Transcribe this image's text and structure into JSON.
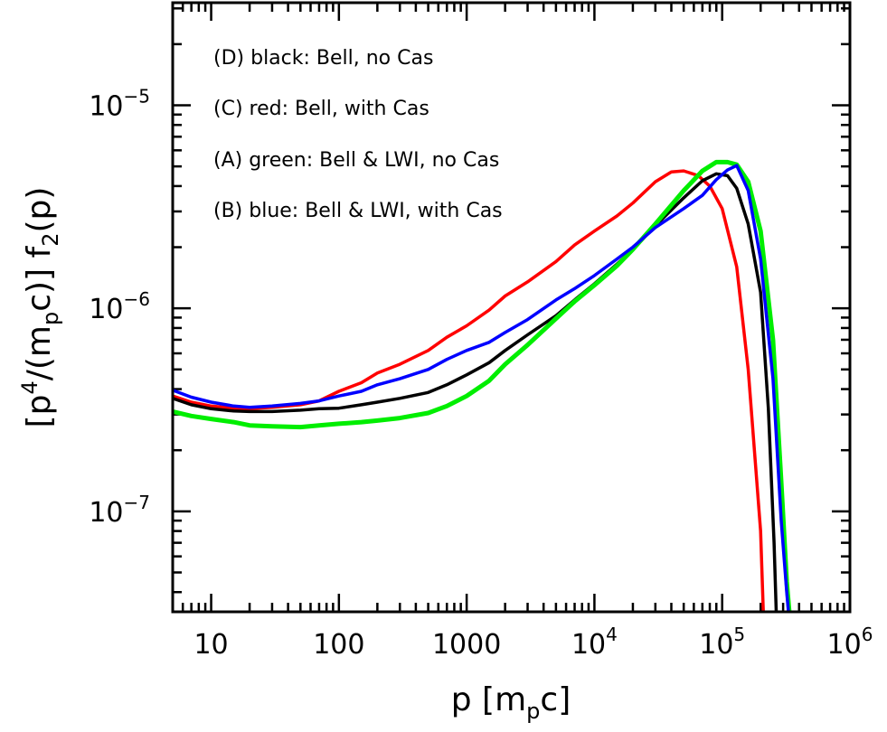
{
  "chart_data": {
    "type": "line",
    "scale": {
      "x": "log",
      "y": "log"
    },
    "xlim": [
      5,
      1000000
    ],
    "ylim": [
      3.2e-08,
      3.2e-05
    ],
    "xticks": [
      {
        "value": 10,
        "label": "10"
      },
      {
        "value": 100,
        "label": "100"
      },
      {
        "value": 1000,
        "label": "1000"
      },
      {
        "value": 10000,
        "base": "10",
        "exp": "4"
      },
      {
        "value": 100000,
        "base": "10",
        "exp": "5"
      },
      {
        "value": 1000000,
        "base": "10",
        "exp": "6"
      }
    ],
    "yticks": [
      {
        "value": 1e-07,
        "base": "10",
        "exp": "−7"
      },
      {
        "value": 1e-06,
        "base": "10",
        "exp": "−6"
      },
      {
        "value": 1e-05,
        "base": "10",
        "exp": "−5"
      }
    ],
    "xlabel": {
      "main": "p  [m",
      "sub": "p",
      "tail": "c]"
    },
    "ylabel": {
      "a": "[p",
      "sup": "4",
      "b": "/(m",
      "sub1": "p",
      "c": "c)]  f",
      "sub2": "2",
      "d": "(p)"
    },
    "legend_position": "top-left",
    "legend": [
      "(D) black: Bell, no Cas",
      "(C) red: Bell, with Cas",
      "(A) green: Bell & LWI, no Cas",
      "(B) blue: Bell & LWI, with Cas"
    ],
    "series": [
      {
        "color": "#ff0000",
        "x": [
          5,
          7,
          10,
          15,
          20,
          30,
          50,
          70,
          100,
          150,
          200,
          300,
          500,
          700,
          1000,
          1500,
          2000,
          3000,
          5000,
          7000,
          10000,
          15000,
          20000,
          30000,
          40000,
          50000,
          65000,
          80000,
          100000,
          130000,
          160000,
          200000,
          210000
        ],
        "y": [
          3.7e-07,
          3.45e-07,
          3.3e-07,
          3.22e-07,
          3.2e-07,
          3.25e-07,
          3.35e-07,
          3.5e-07,
          3.9e-07,
          4.3e-07,
          4.8e-07,
          5.3e-07,
          6.2e-07,
          7.2e-07,
          8.2e-07,
          9.8e-07,
          1.15e-06,
          1.35e-06,
          1.7e-06,
          2.05e-06,
          2.4e-06,
          2.85e-06,
          3.3e-06,
          4.2e-06,
          4.7e-06,
          4.75e-06,
          4.5e-06,
          4e-06,
          3.1e-06,
          1.6e-06,
          5e-07,
          8e-08,
          3.2e-08
        ]
      },
      {
        "color": "#000000",
        "x": [
          5,
          7,
          10,
          15,
          20,
          30,
          50,
          70,
          100,
          150,
          200,
          300,
          500,
          700,
          1000,
          1500,
          2000,
          3000,
          5000,
          7000,
          10000,
          15000,
          20000,
          30000,
          50000,
          70000,
          90000,
          110000,
          130000,
          160000,
          200000,
          230000,
          255000,
          265000
        ],
        "y": [
          3.6e-07,
          3.35e-07,
          3.2e-07,
          3.12e-07,
          3.1e-07,
          3.1e-07,
          3.15e-07,
          3.2e-07,
          3.22e-07,
          3.35e-07,
          3.45e-07,
          3.6e-07,
          3.85e-07,
          4.2e-07,
          4.7e-07,
          5.4e-07,
          6.2e-07,
          7.4e-07,
          9.2e-07,
          1.1e-06,
          1.32e-06,
          1.65e-06,
          1.95e-06,
          2.55e-06,
          3.5e-06,
          4.25e-06,
          4.6e-06,
          4.5e-06,
          3.9e-06,
          2.6e-06,
          1.2e-06,
          3.2e-07,
          7e-08,
          3.2e-08
        ]
      },
      {
        "color": "#00ee00",
        "x": [
          5,
          7,
          10,
          15,
          20,
          30,
          50,
          70,
          100,
          150,
          200,
          300,
          500,
          700,
          1000,
          1500,
          2000,
          3000,
          5000,
          7000,
          10000,
          15000,
          20000,
          30000,
          50000,
          70000,
          90000,
          110000,
          130000,
          160000,
          200000,
          250000,
          290000,
          320000,
          335000
        ],
        "y": [
          3.1e-07,
          2.95e-07,
          2.85e-07,
          2.75e-07,
          2.65e-07,
          2.62e-07,
          2.6e-07,
          2.65e-07,
          2.7e-07,
          2.75e-07,
          2.8e-07,
          2.88e-07,
          3.05e-07,
          3.3e-07,
          3.7e-07,
          4.4e-07,
          5.3e-07,
          6.6e-07,
          8.9e-07,
          1.08e-06,
          1.3e-06,
          1.62e-06,
          1.95e-06,
          2.6e-06,
          3.8e-06,
          4.75e-06,
          5.25e-06,
          5.25e-06,
          5.1e-06,
          4.2e-06,
          2.4e-06,
          7e-07,
          1.4e-07,
          4.5e-08,
          3.2e-08
        ]
      },
      {
        "color": "#0000ff",
        "x": [
          5,
          7,
          10,
          15,
          20,
          30,
          50,
          70,
          100,
          150,
          200,
          300,
          500,
          700,
          1000,
          1500,
          2000,
          3000,
          5000,
          7000,
          10000,
          15000,
          20000,
          30000,
          50000,
          70000,
          90000,
          110000,
          130000,
          160000,
          200000,
          250000,
          290000,
          320000,
          330000
        ],
        "y": [
          3.95e-07,
          3.65e-07,
          3.45e-07,
          3.3e-07,
          3.25e-07,
          3.3e-07,
          3.4e-07,
          3.5e-07,
          3.7e-07,
          3.9e-07,
          4.2e-07,
          4.5e-07,
          5e-07,
          5.6e-07,
          6.2e-07,
          6.8e-07,
          7.6e-07,
          8.8e-07,
          1.1e-06,
          1.25e-06,
          1.45e-06,
          1.75e-06,
          2e-06,
          2.5e-06,
          3.1e-06,
          3.6e-06,
          4.3e-06,
          4.8e-06,
          5.05e-06,
          3.8e-06,
          1.75e-06,
          4.5e-07,
          9e-08,
          4e-08,
          3.2e-08
        ]
      }
    ]
  }
}
